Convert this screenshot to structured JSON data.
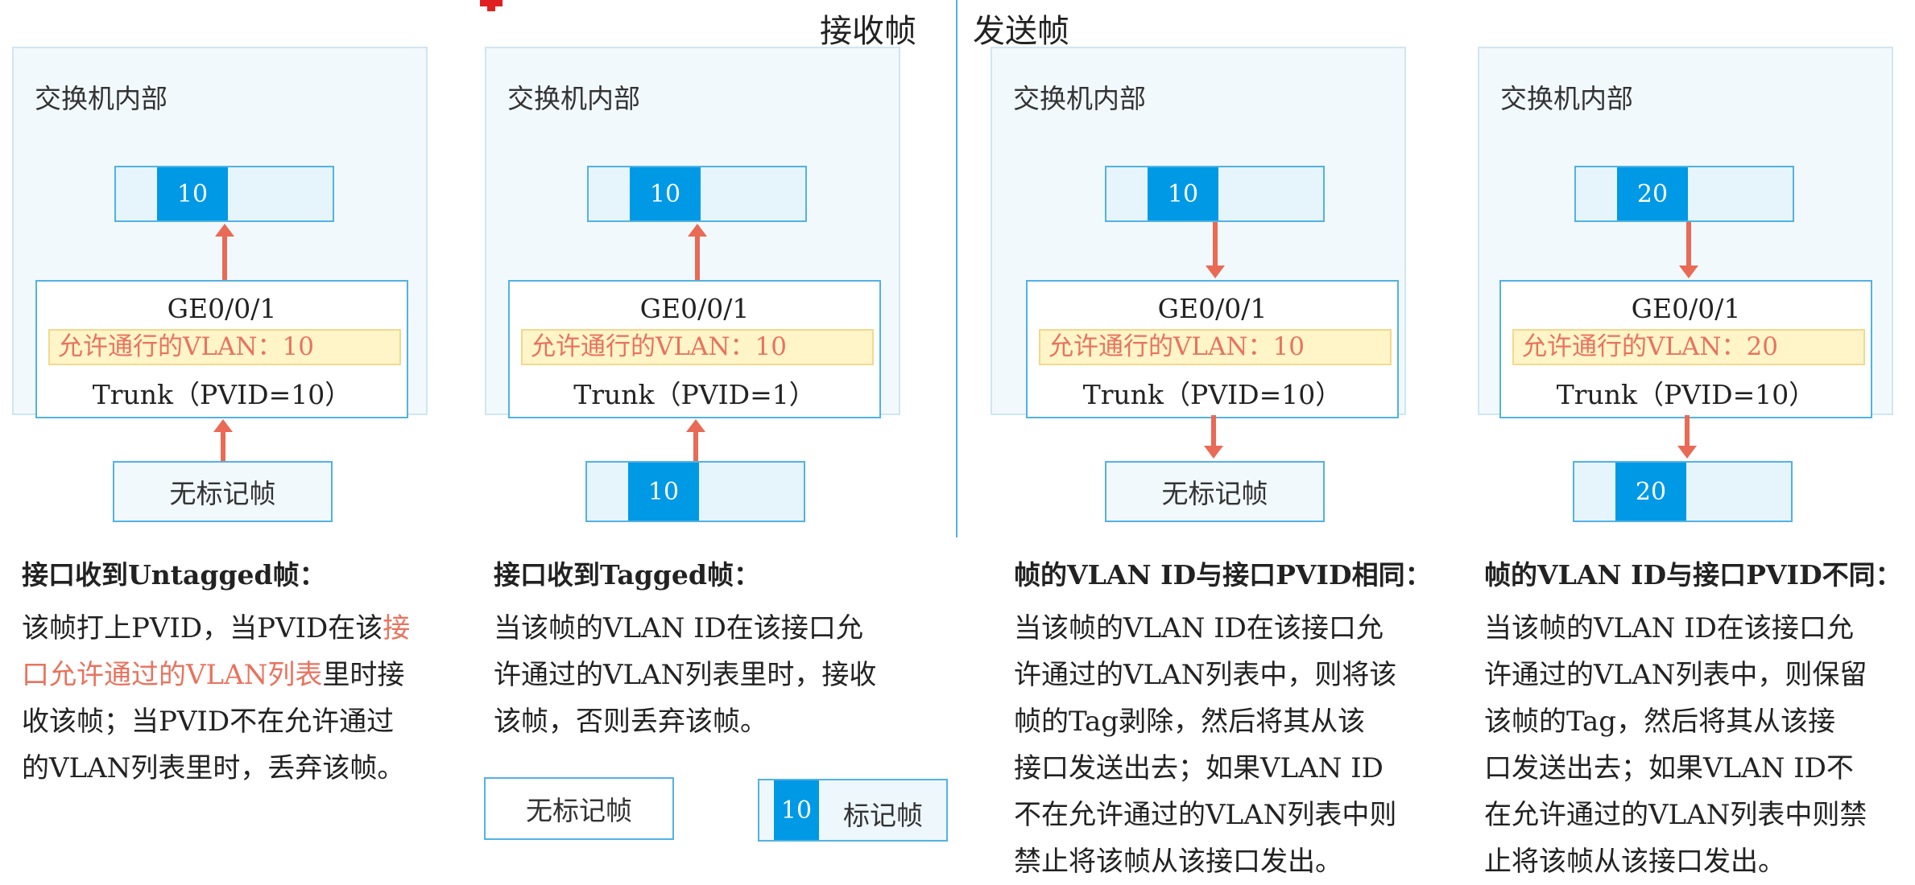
{
  "header": {
    "receive": "接收帧",
    "send": "发送帧"
  },
  "colors": {
    "tag_blue": "#0099e6",
    "arrow": "#e96a55",
    "highlight": "#e8735e",
    "allow_bg": "#fff5c8"
  },
  "panels": [
    {
      "title": "交换机内部",
      "top_frame_vlan": "10",
      "port": "GE0/0/1",
      "allowed": "允许通行的VLAN：10",
      "trunk": "Trunk（PVID=10）",
      "bottom_frame": "无标记帧",
      "direction": "up"
    },
    {
      "title": "交换机内部",
      "top_frame_vlan": "10",
      "port": "GE0/0/1",
      "allowed": "允许通行的VLAN：10",
      "trunk": "Trunk（PVID=1）",
      "bottom_frame_vlan": "10",
      "direction": "up"
    },
    {
      "title": "交换机内部",
      "top_frame_vlan": "10",
      "port": "GE0/0/1",
      "allowed": "允许通行的VLAN：10",
      "trunk": "Trunk（PVID=10）",
      "bottom_frame": "无标记帧",
      "direction": "down"
    },
    {
      "title": "交换机内部",
      "top_frame_vlan": "20",
      "port": "GE0/0/1",
      "allowed": "允许通行的VLAN：20",
      "trunk": "Trunk（PVID=10）",
      "bottom_frame_vlan": "20",
      "direction": "down"
    }
  ],
  "captions": [
    {
      "heading": "接口收到Untagged帧：",
      "l1a": "该帧打上PVID，当PVID在该",
      "l1b": "接",
      "l2a": "口允许通过的VLAN列表",
      "l2b": "里时接",
      "l3": "收该帧；当PVID不在允许通过",
      "l4": "的VLAN列表里时，丢弃该帧。"
    },
    {
      "heading": "接口收到Tagged帧：",
      "lines": [
        "当该帧的VLAN ID在该接口允",
        "许通过的VLAN列表里时，接收",
        "该帧，否则丢弃该帧。"
      ]
    },
    {
      "heading": "帧的VLAN ID与接口PVID相同：",
      "lines": [
        "当该帧的VLAN ID在该接口允",
        "许通过的VLAN列表中，则将该",
        "帧的Tag剥除，然后将其从该",
        "接口发送出去；如果VLAN ID",
        "不在允许通过的VLAN列表中则",
        "禁止将该帧从该接口发出。"
      ]
    },
    {
      "heading": "帧的VLAN ID与接口PVID不同：",
      "lines": [
        "当该帧的VLAN ID在该接口允",
        "许通过的VLAN列表中，则保留",
        "该帧的Tag，然后将其从该接",
        "口发送出去；如果VLAN ID不",
        "在允许通过的VLAN列表中则禁",
        "止将该帧从该接口发出。"
      ]
    }
  ],
  "legend": {
    "untagged": "无标记帧",
    "tagged_vlan": "10",
    "tagged": "标记帧"
  }
}
